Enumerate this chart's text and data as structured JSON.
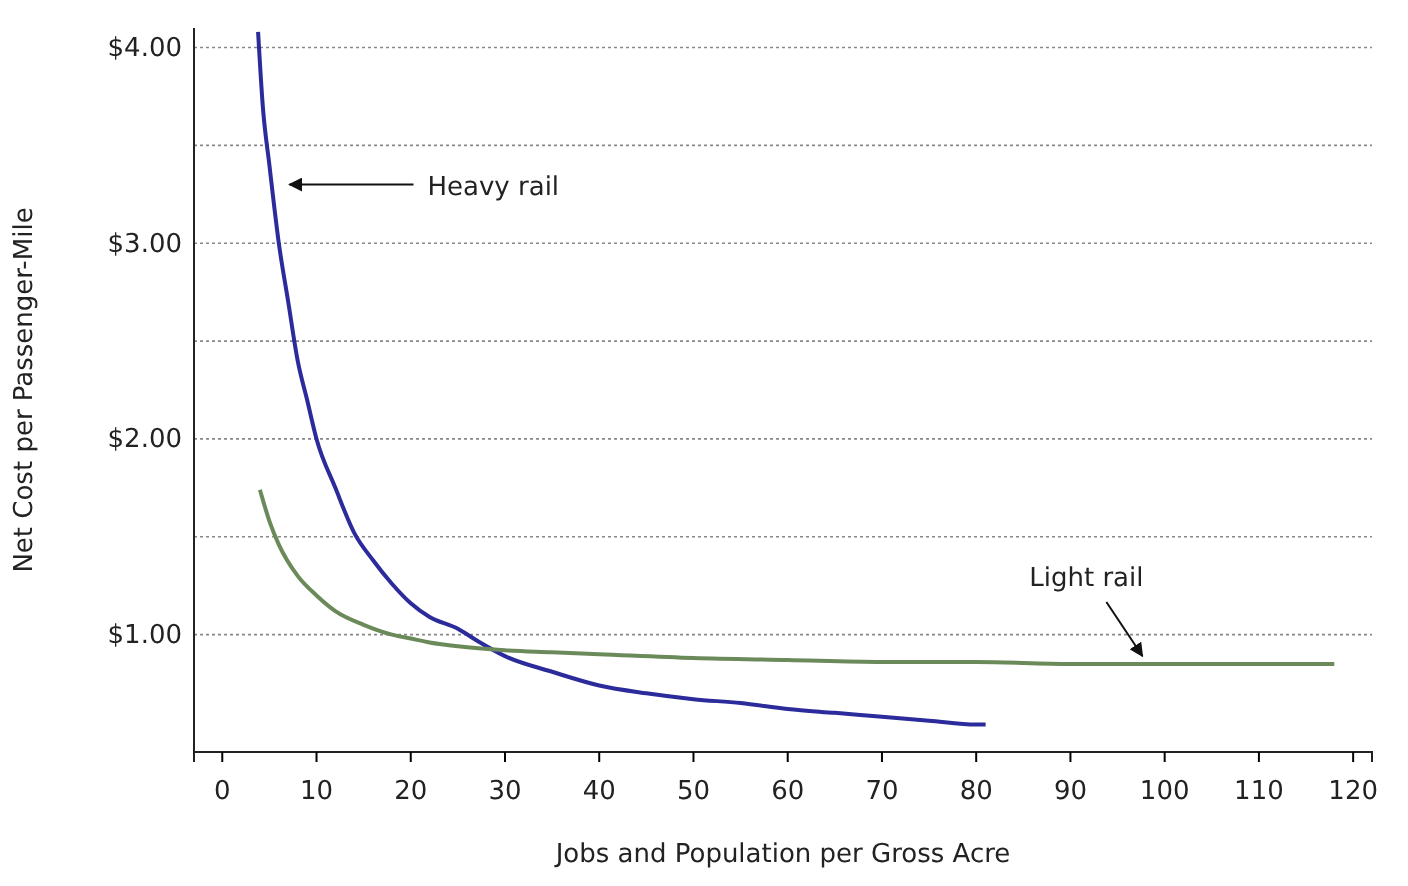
{
  "chart_data": {
    "type": "line",
    "xlabel": "Jobs and Population per Gross Acre",
    "ylabel": "Net Cost per Passenger-Mile",
    "xlim": [
      -3,
      122
    ],
    "xticks": [
      0,
      10,
      20,
      30,
      40,
      50,
      60,
      70,
      80,
      90,
      100,
      110,
      120
    ],
    "ylim": [
      0.4,
      4.1
    ],
    "yticks": [
      {
        "value": 1,
        "label": "$1.00"
      },
      {
        "value": 1.5,
        "label": null
      },
      {
        "value": 2,
        "label": "$2.00"
      },
      {
        "value": 2.5,
        "label": null
      },
      {
        "value": 3,
        "label": "$3.00"
      },
      {
        "value": 3.5,
        "label": null
      },
      {
        "value": 4,
        "label": "$4.00"
      }
    ],
    "grid": "y",
    "marker": "none",
    "line_style": "solid",
    "series": [
      {
        "color": "#2b2b9c",
        "x": [
          3.8,
          4.3,
          5,
          6,
          7,
          8,
          9,
          10,
          12,
          14,
          16,
          18,
          20,
          22,
          25,
          27,
          30,
          35,
          40,
          45,
          50,
          55,
          60,
          65,
          70,
          75,
          80,
          81
        ],
        "values": [
          4.08,
          3.7,
          3.4,
          3.0,
          2.7,
          2.4,
          2.2,
          2.0,
          1.75,
          1.52,
          1.38,
          1.26,
          1.16,
          1.09,
          1.03,
          0.97,
          0.89,
          0.81,
          0.74,
          0.7,
          0.67,
          0.65,
          0.62,
          0.6,
          0.58,
          0.56,
          0.54,
          0.54
        ]
      },
      {
        "color": "#6b8a5a",
        "x": [
          4,
          5,
          6,
          8,
          10,
          12,
          15,
          18,
          20,
          22,
          25,
          30,
          35,
          40,
          50,
          60,
          70,
          80,
          90,
          100,
          110,
          118
        ],
        "values": [
          1.74,
          1.58,
          1.46,
          1.3,
          1.2,
          1.12,
          1.05,
          1.0,
          0.98,
          0.96,
          0.94,
          0.92,
          0.91,
          0.9,
          0.88,
          0.87,
          0.86,
          0.86,
          0.85,
          0.85,
          0.85,
          0.85
        ]
      }
    ],
    "annotations": [
      {
        "text": "Heavy rail",
        "x": 6.5,
        "y": 3.3
      },
      {
        "text": "Light rail",
        "x": 97,
        "y": 0.86
      }
    ]
  }
}
